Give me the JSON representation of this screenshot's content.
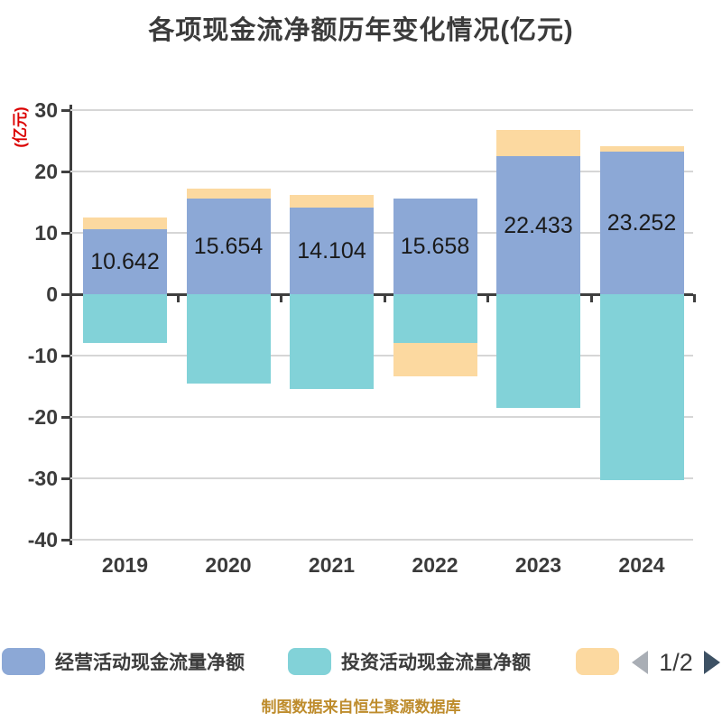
{
  "title": "各项现金流净额历年变化情况(亿元)",
  "y_axis_unit": "(亿元)",
  "footer_text": "制图数据来自恒生聚源数据库",
  "pagination": {
    "page_indicator": "1/2",
    "prev_enabled": false,
    "next_enabled": true,
    "prev_arrow_color": "#A9AEB5",
    "next_arrow_color": "#3D5164"
  },
  "legend": {
    "items": [
      {
        "label": "经营活动现金流量净额",
        "color": "#8CA8D6"
      },
      {
        "label": "投资活动现金流量净额",
        "color": "#82D2D8"
      },
      {
        "label": "",
        "color": "#FCD9A0"
      }
    ]
  },
  "colors": {
    "background": "#FFFFFF",
    "title_text": "#3B3B3B",
    "axis_line": "#3F3F3F",
    "gridline": "#D6D6D6",
    "tick_label": "#3B3B3B",
    "value_label": "#1A1A1A",
    "y_unit_label": "#DB0000",
    "footer_text": "#BE8C2C",
    "series_operating": "#8CA8D6",
    "series_investing": "#82D2D8",
    "series_third": "#FCD9A0"
  },
  "chart_data": {
    "type": "bar",
    "stacked": true,
    "title": "各项现金流净额历年变化情况(亿元)",
    "ylabel": "(亿元)",
    "categories": [
      "2019",
      "2020",
      "2021",
      "2022",
      "2023",
      "2024"
    ],
    "series": [
      {
        "name": "经营活动现金流量净额",
        "color": "#8CA8D6",
        "values": [
          10.642,
          15.654,
          14.104,
          15.658,
          22.433,
          23.252
        ],
        "data_labels": [
          "10.642",
          "15.654",
          "14.104",
          "15.658",
          "22.433",
          "23.252"
        ]
      },
      {
        "name": "投资活动现金流量净额",
        "color": "#82D2D8",
        "values": [
          -8.0,
          -14.6,
          -15.5,
          -8.0,
          -18.6,
          -30.3
        ]
      },
      {
        "name": "",
        "color": "#FCD9A0",
        "values": [
          1.8,
          1.5,
          2.0,
          -5.4,
          4.4,
          0.9
        ]
      }
    ],
    "ylim": [
      -40,
      30
    ],
    "y_ticks": [
      30,
      20,
      10,
      0,
      -10,
      -20,
      -30,
      -40
    ],
    "grid": true,
    "legend_position": "bottom"
  }
}
